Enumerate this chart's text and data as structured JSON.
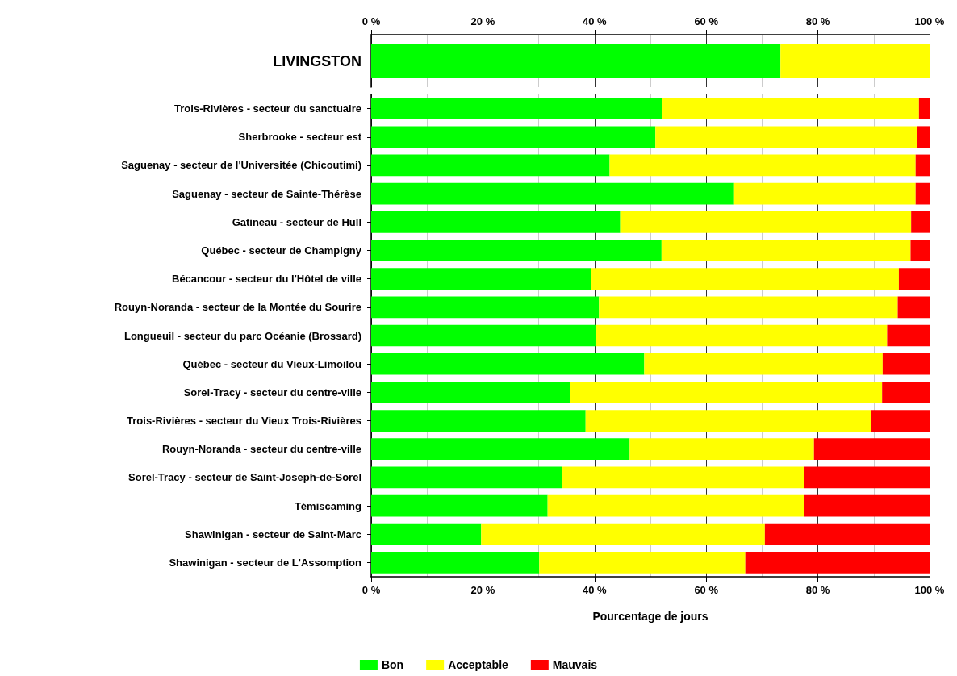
{
  "chart_data": [
    {
      "type": "bar",
      "orientation": "horizontal",
      "stacked": true,
      "categories": [
        "LIVINGSTON"
      ],
      "xlim": [
        0,
        100
      ],
      "xticks": [
        {
          "value": 0,
          "label": "0 %"
        },
        {
          "value": 20,
          "label": "20 %"
        },
        {
          "value": 40,
          "label": "40 %"
        },
        {
          "value": 60,
          "label": "60 %"
        },
        {
          "value": 80,
          "label": "80 %"
        },
        {
          "value": 100,
          "label": "100 %"
        }
      ],
      "grid": "x",
      "series": [
        {
          "color": "#00ff00",
          "values": [
            73.3
          ]
        },
        {
          "color": "#ffff00",
          "values": [
            26.7
          ]
        }
      ]
    },
    {
      "type": "bar",
      "orientation": "horizontal",
      "stacked": true,
      "xlabel": "Pourcentage de jours",
      "categories": [
        "Trois-Rivières - secteur du sanctuaire",
        "Sherbrooke - secteur est",
        "Saguenay - secteur de l'Universitée (Chicoutimi)",
        "Saguenay - secteur de Sainte-Thérèse",
        "Gatineau - secteur de Hull",
        "Québec - secteur de Champigny",
        "Bécancour - secteur du l'Hôtel de ville",
        "Rouyn-Noranda - secteur de la Montée du Sourire",
        "Longueuil - secteur du parc Océanie (Brossard)",
        "Québec - secteur du Vieux-Limoilou",
        "Sorel-Tracy - secteur du centre-ville",
        "Trois-Rivières - secteur du Vieux Trois-Rivières",
        "Rouyn-Noranda - secteur du centre-ville",
        "Sorel-Tracy - secteur de Saint-Joseph-de-Sorel",
        "Témiscaming",
        "Shawinigan - secteur de Saint-Marc",
        "Shawinigan - secteur de L'Assomption"
      ],
      "xlim": [
        0,
        100
      ],
      "xticks": [
        {
          "value": 0,
          "label": "0 %"
        },
        {
          "value": 20,
          "label": "20 %"
        },
        {
          "value": 40,
          "label": "40 %"
        },
        {
          "value": 60,
          "label": "60 %"
        },
        {
          "value": 80,
          "label": "80 %"
        },
        {
          "value": 100,
          "label": "100 %"
        }
      ],
      "grid": "x",
      "legend": "bottom",
      "series": [
        {
          "name": "Bon",
          "color": "#00ff00",
          "values": [
            52.1,
            50.9,
            42.7,
            65.0,
            44.6,
            52.0,
            39.4,
            40.8,
            40.3,
            48.9,
            35.6,
            38.4,
            46.3,
            34.2,
            31.6,
            19.7,
            30.1
          ]
        },
        {
          "name": "Acceptable",
          "color": "#ffff00",
          "values": [
            46.0,
            46.9,
            54.8,
            32.5,
            52.1,
            44.6,
            55.1,
            53.5,
            52.1,
            42.7,
            55.9,
            51.1,
            33.0,
            43.3,
            45.9,
            50.8,
            36.9
          ]
        },
        {
          "name": "Mauvais",
          "color": "#ff0000",
          "values": [
            1.9,
            2.2,
            2.5,
            2.5,
            3.3,
            3.4,
            5.5,
            5.7,
            7.6,
            8.4,
            8.5,
            10.5,
            20.7,
            22.5,
            22.5,
            29.5,
            33.0
          ]
        }
      ]
    }
  ]
}
